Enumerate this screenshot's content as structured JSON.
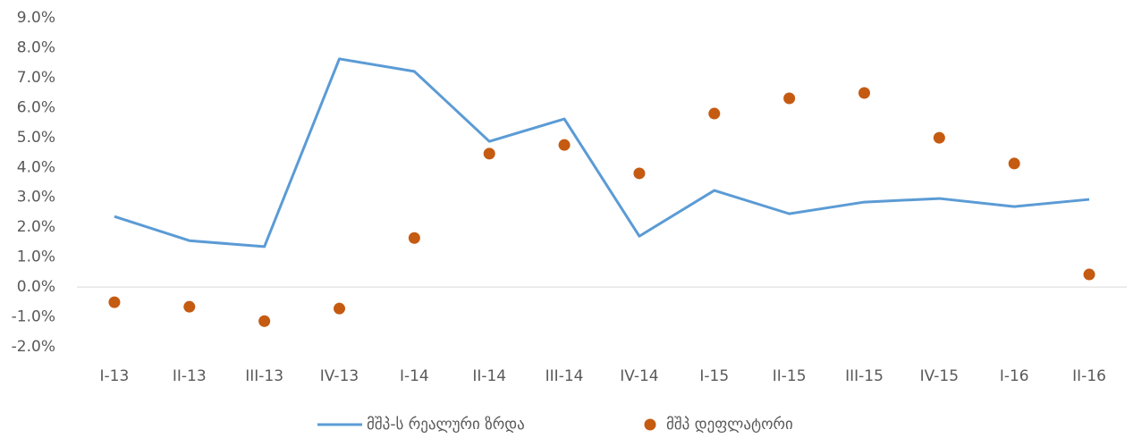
{
  "chart_data": {
    "type": "line",
    "categories": [
      "I-13",
      "II-13",
      "III-13",
      "IV-13",
      "I-14",
      "II-14",
      "III-14",
      "IV-14",
      "I-15",
      "II-15",
      "III-15",
      "IV-15",
      "I-16",
      "II-16"
    ],
    "series": [
      {
        "name": "მშპ-ს რეალური ზრდა",
        "type": "line",
        "color": "#5b9bd5",
        "values": [
          2.36,
          1.55,
          1.35,
          7.63,
          7.21,
          4.87,
          5.62,
          1.7,
          3.23,
          2.45,
          2.84,
          2.96,
          2.69,
          2.93
        ]
      },
      {
        "name": "მშპ დეფლატორი",
        "type": "scatter",
        "color": "#c55a11",
        "values": [
          -0.51,
          -0.66,
          -1.14,
          -0.72,
          1.64,
          4.46,
          4.75,
          3.8,
          5.8,
          6.31,
          6.49,
          4.99,
          4.13,
          0.42
        ]
      }
    ],
    "ylim": [
      -2,
      9
    ],
    "yticks": [
      {
        "value": 9,
        "label": "9.0%"
      },
      {
        "value": 8,
        "label": "8.0%"
      },
      {
        "value": 7,
        "label": "7.0%"
      },
      {
        "value": 6,
        "label": "6.0%"
      },
      {
        "value": 5,
        "label": "5.0%"
      },
      {
        "value": 4,
        "label": "4.0%"
      },
      {
        "value": 3,
        "label": "3.0%"
      },
      {
        "value": 2,
        "label": "2.0%"
      },
      {
        "value": 1,
        "label": "1.0%"
      },
      {
        "value": 0,
        "label": "0.0%"
      },
      {
        "value": -1,
        "label": "-1.0%"
      },
      {
        "value": -2,
        "label": "-2.0%"
      }
    ],
    "grid": false,
    "legend": "bottom"
  }
}
